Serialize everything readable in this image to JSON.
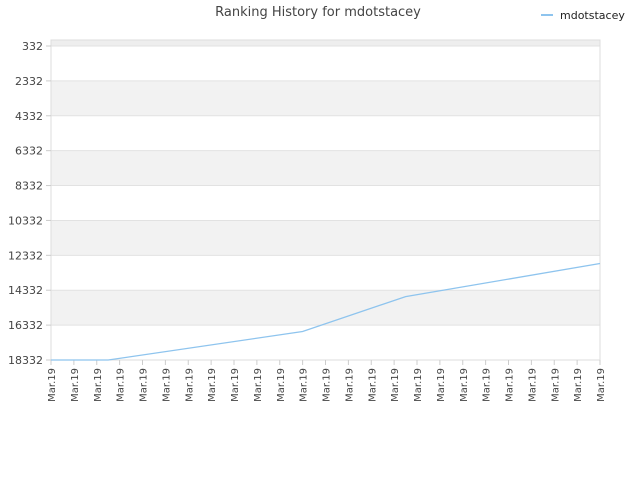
{
  "chart_data": {
    "type": "line",
    "title": "Ranking History for mdotstacey",
    "xlabel": "",
    "ylabel": "",
    "y_inverted": true,
    "ylim": [
      332,
      18332
    ],
    "y_ticks": [
      "332",
      "2332",
      "4332",
      "6332",
      "8332",
      "10332",
      "12332",
      "14332",
      "16332",
      "18332"
    ],
    "x_tick_labels": [
      "Mar.19",
      "Mar.19",
      "Mar.19",
      "Mar.19",
      "Mar.19",
      "Mar.19",
      "Mar.19",
      "Mar.19",
      "Mar.19",
      "Mar.19",
      "Mar.19",
      "Mar.19",
      "Mar.19",
      "Mar.19",
      "Mar.19",
      "Mar.19",
      "Mar.19",
      "Mar.19",
      "Mar.19",
      "Mar.19",
      "Mar.19",
      "Mar.19",
      "Mar.19",
      "Mar.19",
      "Mar.19"
    ],
    "grid": true,
    "legend_position": "top-right",
    "series": [
      {
        "name": "mdotstacey",
        "color": "#8ec4ee",
        "x": [
          0,
          2.5,
          11,
          15.5,
          24
        ],
        "values": [
          18332,
          18332,
          16700,
          14700,
          12800
        ]
      }
    ]
  }
}
